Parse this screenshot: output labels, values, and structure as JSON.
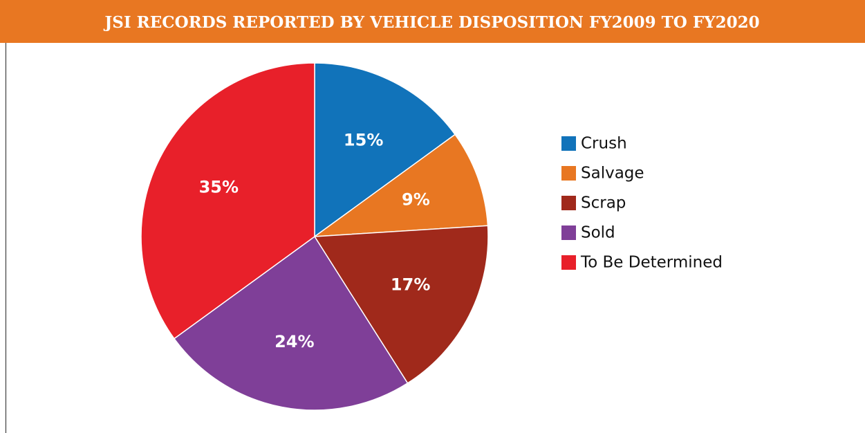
{
  "chart_data": {
    "type": "pie",
    "title": "JSI RECORDS REPORTED BY VEHICLE DISPOSITION FY2009 TO FY2020",
    "categories": [
      "Crush",
      "Salvage",
      "Scrap",
      "Sold",
      "To Be Determined"
    ],
    "values": [
      15,
      9,
      17,
      24,
      35
    ],
    "value_labels": [
      "15%",
      "9%",
      "17%",
      "24%",
      "35%"
    ],
    "colors": [
      "#1173ba",
      "#e87722",
      "#a0291b",
      "#7f3f98",
      "#e8202a"
    ],
    "legend": "right"
  }
}
